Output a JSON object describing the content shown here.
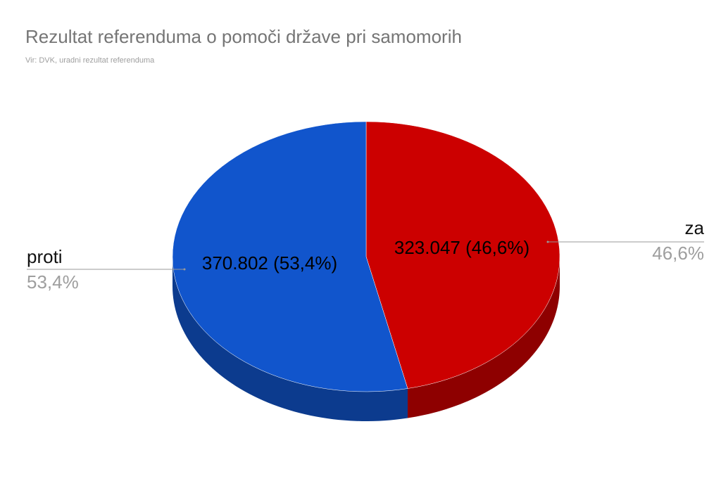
{
  "chart_data": {
    "type": "pie",
    "title": "Rezultat referenduma o pomoči države pri samomorih",
    "subtitle": "Vir: DVK, uradni rezultat referenduma",
    "categories": [
      "za",
      "proti"
    ],
    "values": [
      323047,
      370802
    ],
    "value_labels": [
      "323.047 (46,6%)",
      "370.802 (53,4%)"
    ],
    "percents": [
      46.6,
      53.4
    ],
    "percent_labels": [
      "46,6%",
      "53,4%"
    ],
    "colors": [
      "#cc0000",
      "#1155cc"
    ],
    "side_colors": [
      "#8e0000",
      "#0c3b8e"
    ]
  }
}
